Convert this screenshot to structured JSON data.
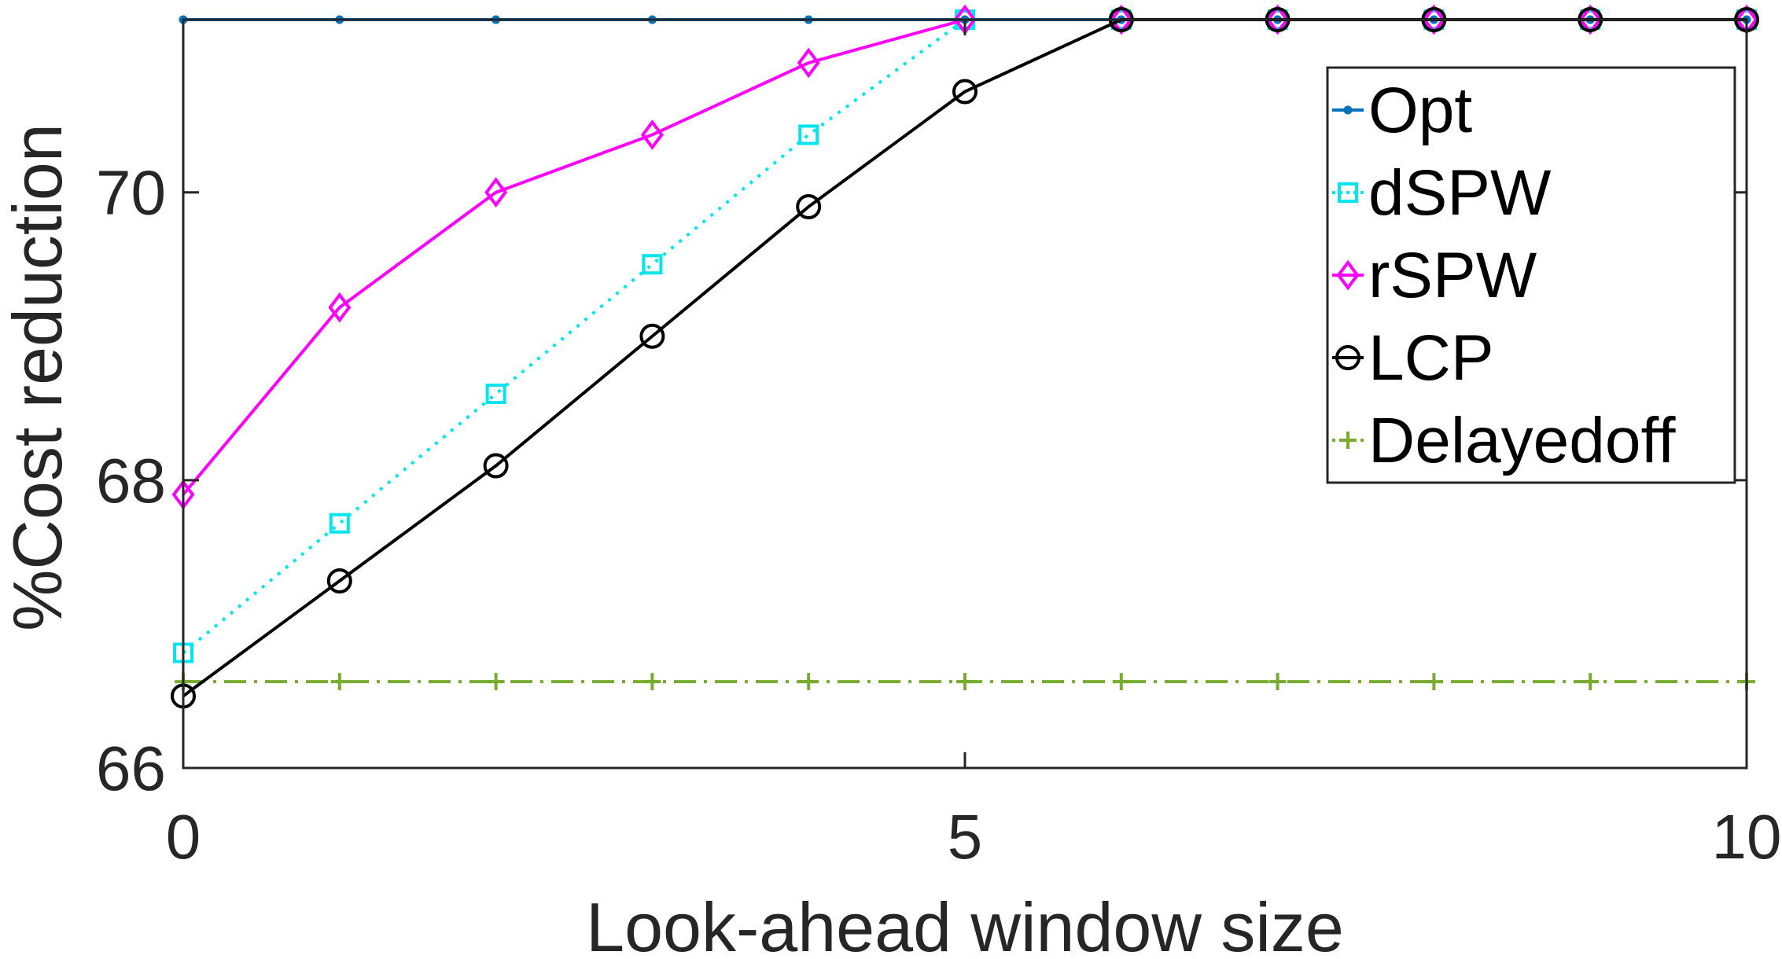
{
  "chart_data": {
    "type": "line",
    "title": "",
    "xlabel": "Look-ahead window size",
    "ylabel": "%Cost reduction",
    "xlim": [
      0,
      10
    ],
    "ylim": [
      66,
      71.2
    ],
    "xticks": [
      0,
      5,
      10
    ],
    "yticks": [
      66,
      68,
      70
    ],
    "grid": false,
    "legend_position": "top-right",
    "x": [
      0,
      1,
      2,
      3,
      4,
      5,
      6,
      7,
      8,
      9,
      10
    ],
    "series": [
      {
        "name": "Opt",
        "color": "#0072BD",
        "line_style": "solid",
        "marker": "point",
        "values": [
          71.2,
          71.2,
          71.2,
          71.2,
          71.2,
          71.2,
          71.2,
          71.2,
          71.2,
          71.2,
          71.2
        ]
      },
      {
        "name": "dSPW",
        "color": "#00E5EE",
        "line_style": "dotted",
        "marker": "square",
        "values": [
          66.8,
          67.7,
          68.6,
          69.5,
          70.4,
          71.2,
          71.2,
          71.2,
          71.2,
          71.2,
          71.2
        ]
      },
      {
        "name": "rSPW",
        "color": "#FF00FF",
        "line_style": "solid",
        "marker": "diamond",
        "values": [
          67.9,
          69.2,
          70.0,
          70.4,
          70.9,
          71.2,
          71.2,
          71.2,
          71.2,
          71.2,
          71.2
        ]
      },
      {
        "name": "LCP",
        "color": "#000000",
        "line_style": "solid",
        "marker": "circle",
        "values": [
          66.5,
          67.3,
          68.1,
          69.0,
          69.9,
          70.7,
          71.2,
          71.2,
          71.2,
          71.2,
          71.2
        ]
      },
      {
        "name": "Delayedoff",
        "color": "#77AC30",
        "line_style": "dashdot",
        "marker": "plus",
        "values": [
          66.6,
          66.6,
          66.6,
          66.6,
          66.6,
          66.6,
          66.6,
          66.6,
          66.6,
          66.6,
          66.6
        ]
      }
    ]
  }
}
